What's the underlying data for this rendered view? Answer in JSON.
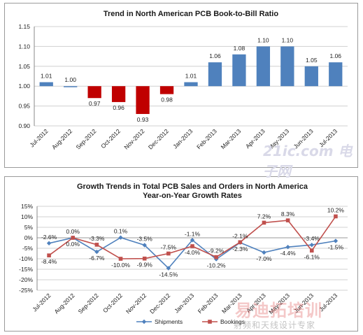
{
  "chart_data": [
    {
      "type": "bar",
      "title": "Trend in North American PCB Book-to-Bill Ratio",
      "categories": [
        "Jul-2012",
        "Aug-2012",
        "Sep-2012",
        "Oct-2012",
        "Nov-2012",
        "Dec-2012",
        "Jan-2013",
        "Feb-2013",
        "Mar-2013",
        "Apr-2013",
        "May-2013",
        "Jun-2013",
        "Jul-2013"
      ],
      "values": [
        1.01,
        1.0,
        0.97,
        0.96,
        0.93,
        0.98,
        1.01,
        1.06,
        1.08,
        1.1,
        1.1,
        1.05,
        1.06
      ],
      "value_labels": [
        "1.01",
        "1.00",
        "0.97",
        "0.96",
        "0.93",
        "0.98",
        "1.01",
        "1.06",
        "1.08",
        "1.10",
        "1.10",
        "1.05",
        "1.06"
      ],
      "baseline": 1.0,
      "ylim": [
        0.9,
        1.15
      ],
      "yticks": [
        "0.90",
        "0.95",
        "1.00",
        "1.05",
        "1.10",
        "1.15"
      ],
      "grid": true,
      "colors": {
        "above": "#4f81bd",
        "below": "#c00000"
      }
    },
    {
      "type": "line",
      "title": "Growth Trends in Total PCB Sales and Orders in North America",
      "subtitle": "Year-on-Year Growth Rates",
      "categories": [
        "Jul-2012",
        "Aug-2012",
        "Sep-2012",
        "Oct-2012",
        "Nov-2012",
        "Dec-2012",
        "Jan-2013",
        "Feb-2013",
        "Mar-2013",
        "Apr-2013",
        "May-2013",
        "Jun-2013",
        "Jul-2013"
      ],
      "ylim": [
        -25,
        15
      ],
      "yticks": [
        "15%",
        "10%",
        "5%",
        "0%",
        "-5%",
        "-10%",
        "-15%",
        "-20%",
        "-25%"
      ],
      "grid": true,
      "legend": "bottom",
      "series": [
        {
          "name": "Shipments",
          "color": "#4f81bd",
          "marker": "diamond",
          "values": [
            -2.6,
            0.0,
            -6.7,
            0.1,
            -3.5,
            -14.5,
            -1.1,
            -10.2,
            -2.3,
            -7.0,
            -4.4,
            -3.4,
            -1.5
          ],
          "labels": [
            "-2.6%",
            "0.0%",
            "-6.7%",
            "0.1%",
            "-3.5%",
            "-14.5%",
            "-1.1%",
            "-10.2%",
            "-2.3%",
            "-7.0%",
            "-4.4%",
            "-3.4%",
            "-1.5%"
          ]
        },
        {
          "name": "Bookings",
          "color": "#c0504d",
          "marker": "square",
          "values": [
            -8.4,
            0.0,
            -3.3,
            -10.0,
            -9.9,
            -7.5,
            -4.0,
            -9.2,
            -2.1,
            7.2,
            8.3,
            -6.1,
            10.2
          ],
          "labels": [
            "-8.4%",
            "0.0%",
            "-3.3%",
            "-10.0%",
            "-9.9%",
            "-7.5%",
            "-4.0%",
            "-9.2%",
            "-2.1%",
            "7.2%",
            "8.3%",
            "-6.1%",
            "10.2%"
          ]
        }
      ]
    }
  ],
  "watermarks": {
    "top": "21ic.com 电子网",
    "bottom_main": "易迪拓培训",
    "bottom_sub": "射频和天线设计专家"
  }
}
